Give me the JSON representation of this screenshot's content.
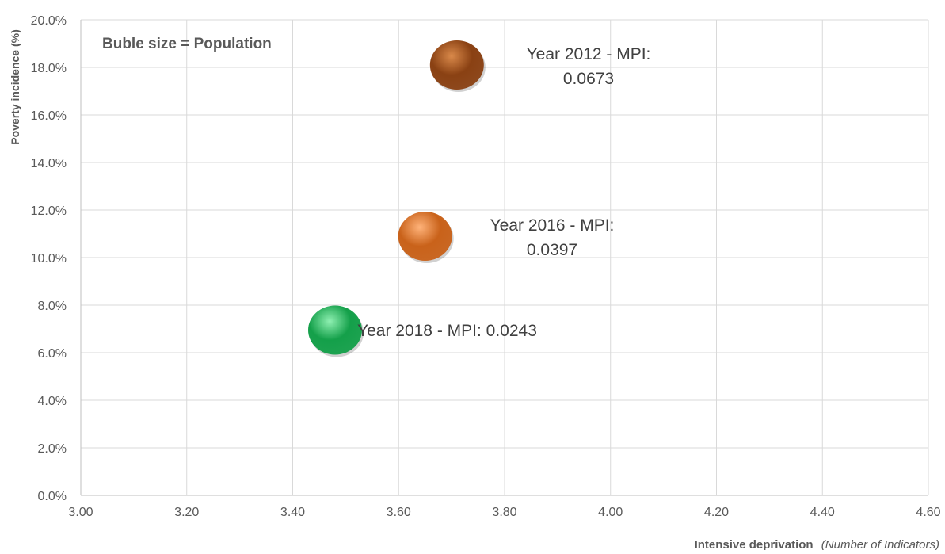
{
  "chart_data": {
    "type": "bubble",
    "title": "",
    "annotation": "Buble size = Population",
    "xlabel": "Intensive deprivation",
    "xlabel_suffix": "(Number of Indicators)",
    "ylabel": "Poverty incidence (%)",
    "xlim": [
      3.0,
      4.6
    ],
    "ylim": [
      0.0,
      20.0
    ],
    "x_ticks": [
      "3.00",
      "3.20",
      "3.40",
      "3.60",
      "3.80",
      "4.00",
      "4.20",
      "4.40",
      "4.60"
    ],
    "y_ticks": [
      "0.0%",
      "2.0%",
      "4.0%",
      "6.0%",
      "8.0%",
      "10.0%",
      "12.0%",
      "14.0%",
      "16.0%",
      "18.0%",
      "20.0%"
    ],
    "grid": true,
    "points": [
      {
        "x": 3.71,
        "y": 18.1,
        "label_line1": "Year 2012 - MPI:",
        "label_line2": "0.0673",
        "color": "#8a4113",
        "highlight": "#d9894a"
      },
      {
        "x": 3.65,
        "y": 10.9,
        "label_line1": "Year 2016 - MPI:",
        "label_line2": "0.0397",
        "color": "#c9621a",
        "highlight": "#ffb37a"
      },
      {
        "x": 3.48,
        "y": 6.95,
        "label_line1": "Year 2018 - MPI: 0.0243",
        "label_line2": "",
        "color": "#14a04a",
        "highlight": "#8ff0b2"
      }
    ]
  }
}
